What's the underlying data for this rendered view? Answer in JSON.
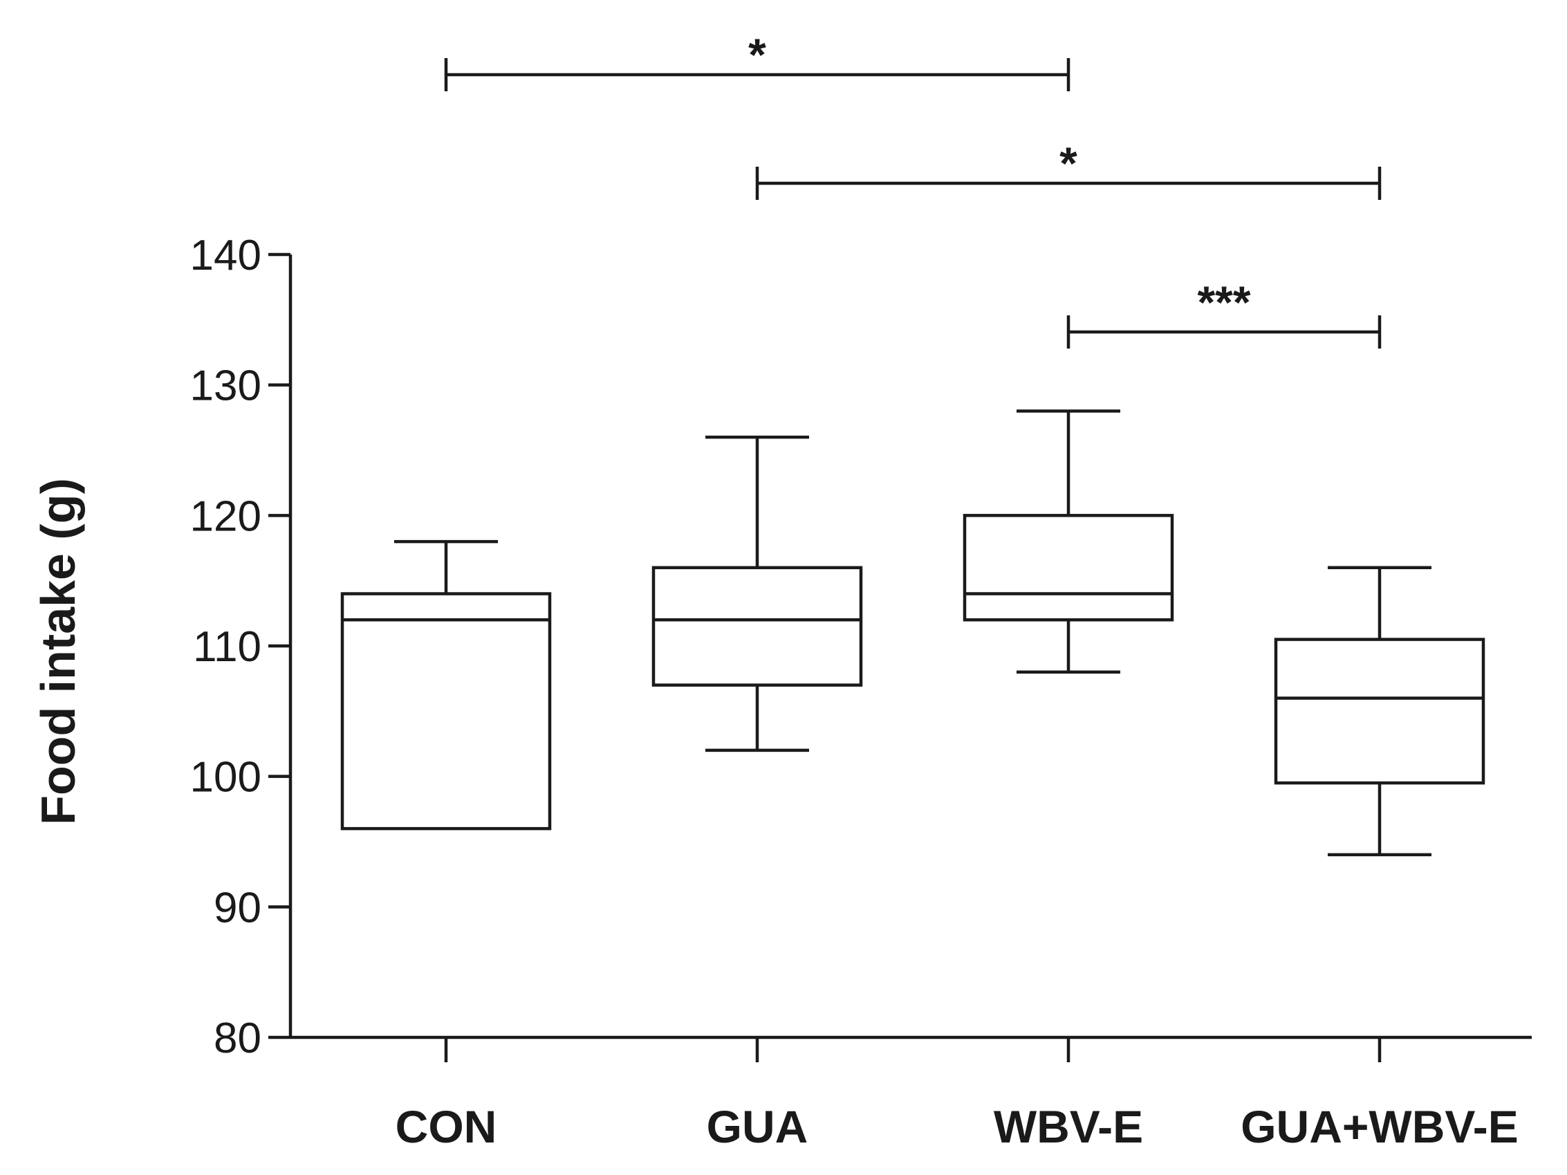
{
  "chart_data": {
    "type": "boxplot",
    "title": "",
    "xlabel": "",
    "ylabel": "Food intake (g)",
    "ylim": [
      80,
      140
    ],
    "yticks": [
      80,
      90,
      100,
      110,
      120,
      130,
      140
    ],
    "grid": false,
    "categories": [
      "CON",
      "GUA",
      "WBV-E",
      "GUA+WBV-E"
    ],
    "boxes": [
      {
        "category": "CON",
        "min": 96,
        "q1": 96,
        "median": 112,
        "q3": 114,
        "max": 118
      },
      {
        "category": "GUA",
        "min": 102,
        "q1": 107,
        "median": 112,
        "q3": 116,
        "max": 126
      },
      {
        "category": "WBV-E",
        "min": 108,
        "q1": 112,
        "median": 114,
        "q3": 120,
        "max": 128
      },
      {
        "category": "GUA+WBV-E",
        "min": 94,
        "q1": 99.5,
        "median": 106,
        "q3": 110.5,
        "max": 116
      }
    ],
    "significance": [
      {
        "from": 0,
        "to": 2,
        "label": "*",
        "level": 3
      },
      {
        "from": 1,
        "to": 3,
        "label": "*",
        "level": 2
      },
      {
        "from": 2,
        "to": 3,
        "label": "***",
        "level": 1
      }
    ]
  }
}
